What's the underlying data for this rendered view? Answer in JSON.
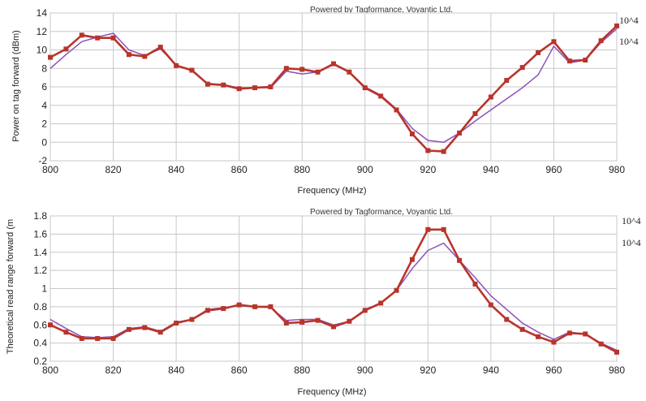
{
  "chart_data": [
    {
      "type": "line",
      "title": "Powered by Tagformance, Voyantic Ltd.",
      "xlabel": "Frequency (MHz)",
      "ylabel": "Power on tag forward (dBm)",
      "xlim": [
        800,
        980
      ],
      "ylim": [
        -2,
        14
      ],
      "xticks": [
        800,
        820,
        840,
        860,
        880,
        900,
        920,
        940,
        960,
        980
      ],
      "yticks": [
        -2,
        0,
        2,
        4,
        6,
        8,
        10,
        12,
        14
      ],
      "grid": true,
      "legend_position": "right",
      "series": [
        {
          "name": "10^4",
          "color": "#8a52b8",
          "marker": "none",
          "x": [
            800,
            805,
            810,
            815,
            820,
            825,
            830,
            835,
            840,
            845,
            850,
            855,
            860,
            865,
            870,
            875,
            880,
            885,
            890,
            895,
            900,
            905,
            910,
            915,
            920,
            925,
            930,
            935,
            940,
            945,
            950,
            955,
            960,
            965,
            970,
            975,
            980
          ],
          "y": [
            8.0,
            9.5,
            10.9,
            11.4,
            11.8,
            10.0,
            9.4,
            10.1,
            8.4,
            7.7,
            6.4,
            6.2,
            5.9,
            5.9,
            5.9,
            7.7,
            7.4,
            7.6,
            8.4,
            7.6,
            6.0,
            5.1,
            3.6,
            1.5,
            0.2,
            0.0,
            1.0,
            2.3,
            3.5,
            4.7,
            5.9,
            7.3,
            10.4,
            8.6,
            8.9,
            10.8,
            12.3
          ]
        },
        {
          "name": "10^4",
          "color": "#b8342c",
          "marker": "square",
          "x": [
            800,
            805,
            810,
            815,
            820,
            825,
            830,
            835,
            840,
            845,
            850,
            855,
            860,
            865,
            870,
            875,
            880,
            885,
            890,
            895,
            900,
            905,
            910,
            915,
            920,
            925,
            930,
            935,
            940,
            945,
            950,
            955,
            960,
            965,
            970,
            975,
            980
          ],
          "y": [
            9.2,
            10.1,
            11.6,
            11.3,
            11.3,
            9.5,
            9.3,
            10.3,
            8.3,
            7.8,
            6.3,
            6.2,
            5.8,
            5.9,
            6.0,
            8.0,
            7.9,
            7.6,
            8.5,
            7.6,
            5.9,
            5.0,
            3.5,
            0.9,
            -0.9,
            -1.0,
            1.0,
            3.1,
            4.9,
            6.7,
            8.1,
            9.7,
            10.9,
            8.8,
            8.9,
            11.0,
            12.6
          ]
        }
      ]
    },
    {
      "type": "line",
      "title": "Powered by Tagformance, Voyantic Ltd.",
      "xlabel": "Frequency (MHz)",
      "ylabel": "Theoretical read range forward (m",
      "xlim": [
        800,
        980
      ],
      "ylim": [
        0.2,
        1.8
      ],
      "xticks": [
        800,
        820,
        840,
        860,
        880,
        900,
        920,
        940,
        960,
        980
      ],
      "yticks": [
        0.2,
        0.4,
        0.6,
        0.8,
        1,
        1.2,
        1.4,
        1.6,
        1.8
      ],
      "grid": true,
      "legend_position": "right",
      "series": [
        {
          "name": "10^4",
          "color": "#8a52b8",
          "marker": "none",
          "x": [
            800,
            805,
            810,
            815,
            820,
            825,
            830,
            835,
            840,
            845,
            850,
            855,
            860,
            865,
            870,
            875,
            880,
            885,
            890,
            895,
            900,
            905,
            910,
            915,
            920,
            925,
            930,
            935,
            940,
            945,
            950,
            955,
            960,
            965,
            970,
            975,
            980
          ],
          "y": [
            0.66,
            0.56,
            0.47,
            0.46,
            0.47,
            0.56,
            0.58,
            0.53,
            0.63,
            0.66,
            0.77,
            0.79,
            0.81,
            0.8,
            0.79,
            0.65,
            0.66,
            0.66,
            0.6,
            0.64,
            0.77,
            0.84,
            0.98,
            1.22,
            1.42,
            1.5,
            1.31,
            1.12,
            0.92,
            0.77,
            0.62,
            0.52,
            0.44,
            0.52,
            0.5,
            0.4,
            0.32
          ]
        },
        {
          "name": "10^4",
          "color": "#b8342c",
          "marker": "square",
          "x": [
            800,
            805,
            810,
            815,
            820,
            825,
            830,
            835,
            840,
            845,
            850,
            855,
            860,
            865,
            870,
            875,
            880,
            885,
            890,
            895,
            900,
            905,
            910,
            915,
            920,
            925,
            930,
            935,
            940,
            945,
            950,
            955,
            960,
            965,
            970,
            975,
            980
          ],
          "y": [
            0.6,
            0.52,
            0.45,
            0.45,
            0.45,
            0.55,
            0.57,
            0.52,
            0.62,
            0.66,
            0.76,
            0.78,
            0.82,
            0.8,
            0.8,
            0.62,
            0.63,
            0.65,
            0.58,
            0.64,
            0.76,
            0.84,
            0.98,
            1.32,
            1.65,
            1.65,
            1.31,
            1.05,
            0.82,
            0.66,
            0.55,
            0.47,
            0.41,
            0.51,
            0.5,
            0.39,
            0.3
          ]
        }
      ]
    }
  ]
}
